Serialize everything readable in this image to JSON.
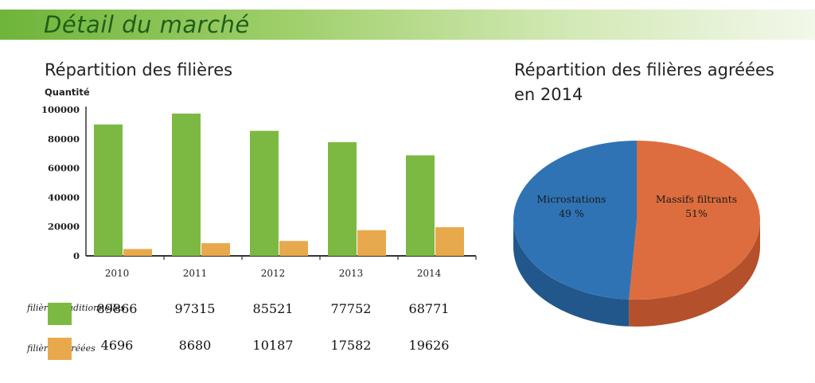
{
  "banner": {
    "title": "Détail du marché"
  },
  "colors": {
    "traditional": "#7cb942",
    "approved": "#e8a94c",
    "microstations": "#2f73b5",
    "massifs": "#dd6d3e"
  },
  "chart_data": [
    {
      "type": "bar",
      "title": "Répartition des filières",
      "ylabel": "Quantité",
      "xlabel": "",
      "categories": [
        "2010",
        "2011",
        "2012",
        "2013",
        "2014"
      ],
      "ylim": [
        0,
        100000
      ],
      "yticks": [
        "0",
        "20000",
        "40000",
        "60000",
        "80000",
        "100000"
      ],
      "series": [
        {
          "name": "filières traditionnelles",
          "values": [
            89866,
            97315,
            85521,
            77752,
            68771
          ]
        },
        {
          "name": "filières agréées",
          "values": [
            4696,
            8680,
            10187,
            17582,
            19626
          ]
        }
      ],
      "table": [
        [
          "89866",
          "97315",
          "85521",
          "77752",
          "68771"
        ],
        [
          "4696",
          "8680",
          "10187",
          "17582",
          "19626"
        ]
      ],
      "legend": [
        "filières traditionnelles",
        "filières agréées"
      ]
    },
    {
      "type": "pie",
      "title_line1": "Répartition des filières agréées",
      "title_line2": "en 2014",
      "slices": [
        {
          "name": "Microstations",
          "value": 49,
          "label": "49 %"
        },
        {
          "name": "Massifs filtrants",
          "value": 51,
          "label": "51%"
        }
      ]
    }
  ]
}
